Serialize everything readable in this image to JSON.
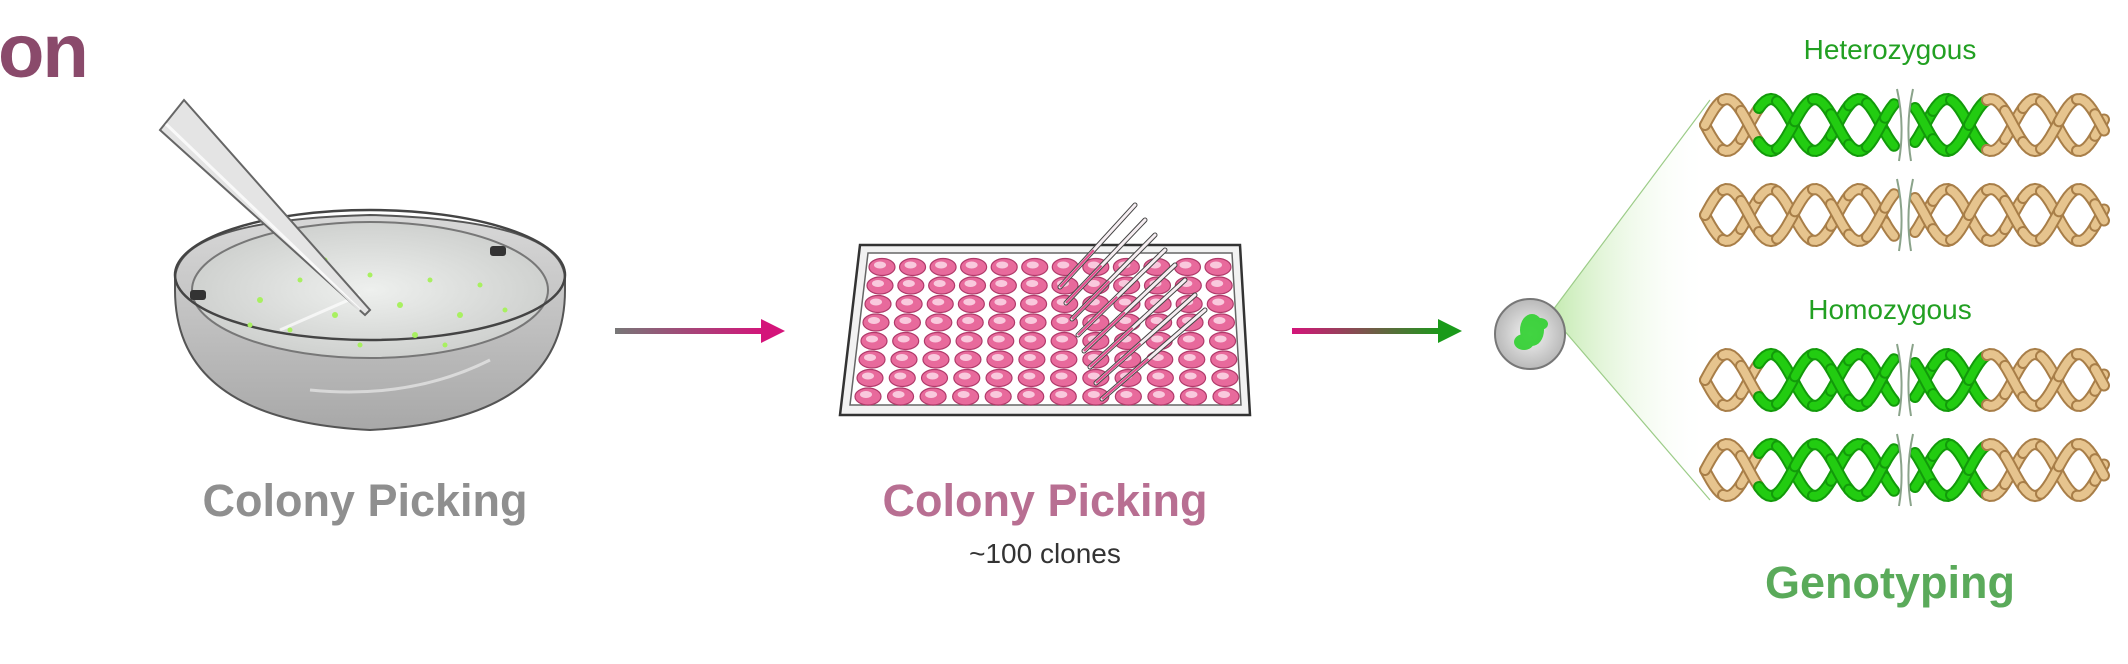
{
  "header": {
    "title_fragment": "on",
    "title_color": "#8a4a6b"
  },
  "stages": [
    {
      "label": "Colony Picking",
      "color": "#8f8f8f",
      "icon": "petri-dish-icon"
    },
    {
      "label": "Colony Picking",
      "sublabel": "~100 clones",
      "color": "#b86f92",
      "icon": "well-plate-icon"
    },
    {
      "label": "Genotyping",
      "color": "#5aaa5a",
      "icon": "cell-dna-icon"
    }
  ],
  "dna": {
    "heterozygous_label": "Heterozygous",
    "homozygous_label": "Homozygous",
    "green": "#22cc11",
    "tan": "#e6c48e"
  },
  "arrows": [
    {
      "from_color": "#777777",
      "to_color": "#d4147a"
    },
    {
      "from_color": "#d4147a",
      "to_color": "#1a9a1a"
    }
  ]
}
